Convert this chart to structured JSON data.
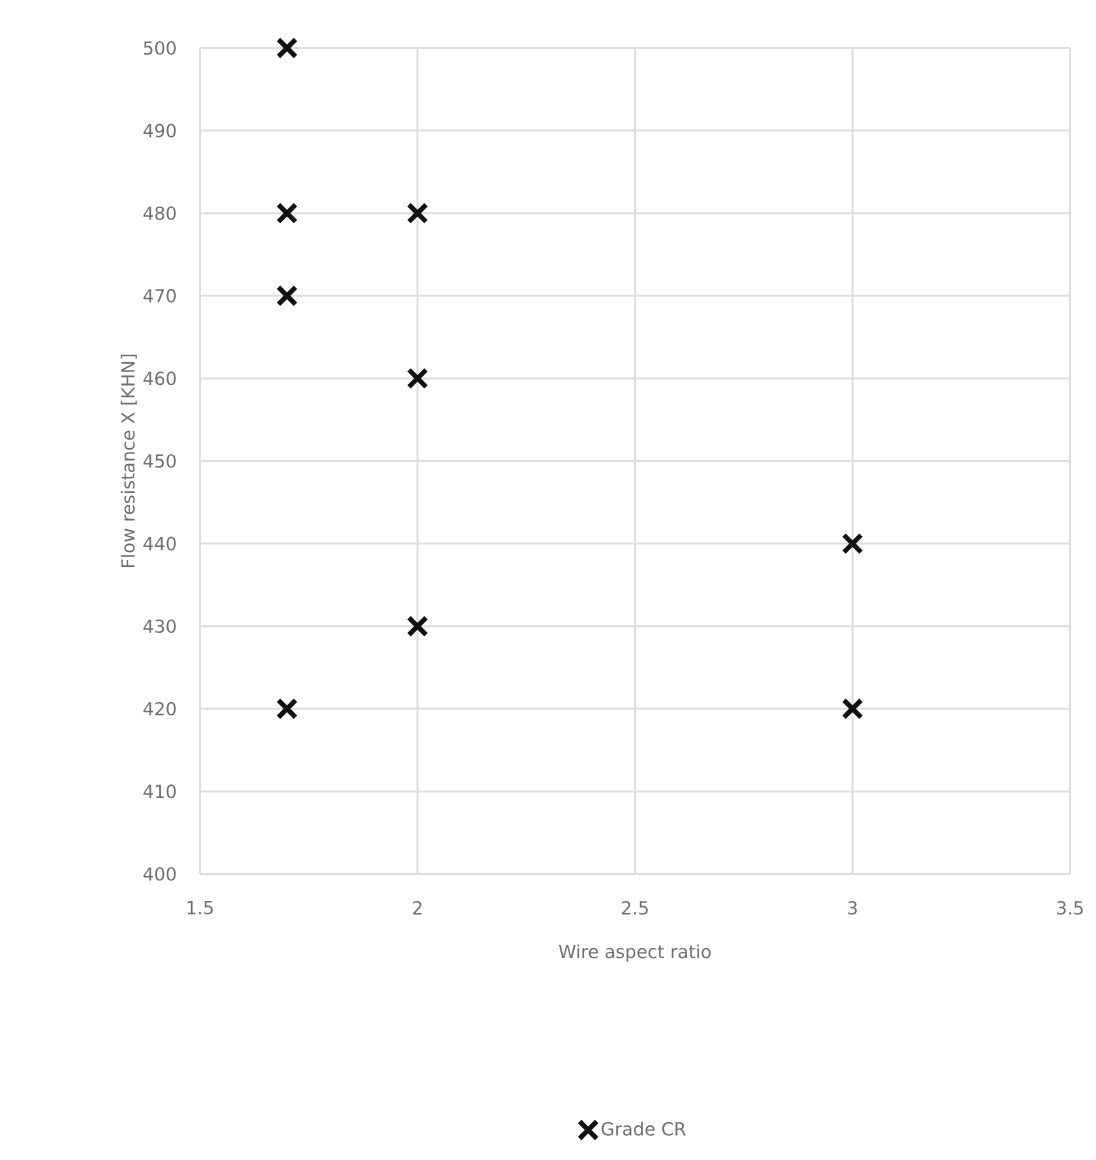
{
  "chart_data": {
    "type": "scatter",
    "xlabel": "Wire aspect ratio",
    "ylabel": "Flow resistance X [KHN]",
    "x": [
      1.7,
      1.7,
      1.7,
      1.7,
      2,
      2,
      2,
      3,
      3
    ],
    "series": [
      {
        "name": "Grade CR",
        "color": "#111111",
        "values": [
          500,
          480,
          470,
          420,
          480,
          460,
          430,
          440,
          420
        ]
      }
    ],
    "xlim": [
      1.5,
      3.5
    ],
    "xticks": [
      1.5,
      2,
      2.5,
      3,
      3.5
    ],
    "ylim": [
      400,
      500
    ],
    "yticks": [
      400,
      410,
      420,
      430,
      440,
      450,
      460,
      470,
      480,
      490,
      500
    ],
    "grid": true,
    "legend": "bottom",
    "marker": "cross"
  }
}
